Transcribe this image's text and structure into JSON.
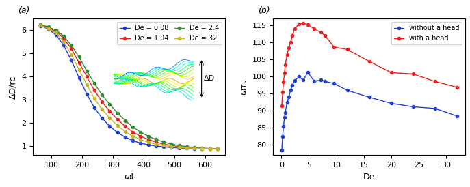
{
  "chart_data": [
    {
      "type": "line",
      "title": "(a)",
      "x_label": "ωt",
      "y_label": "ΔD/rc",
      "annotations": [
        "ΔD"
      ],
      "x": [
        65,
        90,
        115,
        140,
        165,
        190,
        215,
        240,
        265,
        290,
        315,
        340,
        365,
        390,
        415,
        440,
        465,
        490,
        515,
        540,
        565,
        590,
        615,
        640
      ],
      "series": [
        {
          "name": "De = 0.08",
          "color": "#1f3fd6",
          "marker": "o",
          "line_style": "-",
          "values": [
            6.2,
            6.05,
            5.8,
            5.35,
            4.7,
            3.95,
            3.25,
            2.65,
            2.2,
            1.85,
            1.58,
            1.38,
            1.23,
            1.12,
            1.05,
            1.0,
            0.96,
            0.93,
            0.91,
            0.9,
            0.89,
            0.88,
            0.88,
            0.87
          ]
        },
        {
          "name": "De = 1.04",
          "color": "#e8231f",
          "marker": "o",
          "line_style": "-",
          "values": [
            6.22,
            6.12,
            5.95,
            5.65,
            5.2,
            4.6,
            4.0,
            3.4,
            2.9,
            2.5,
            2.15,
            1.85,
            1.6,
            1.42,
            1.28,
            1.17,
            1.08,
            1.02,
            0.97,
            0.93,
            0.91,
            0.89,
            0.88,
            0.87
          ]
        },
        {
          "name": "De = 2.4",
          "color": "#2e8b2e",
          "marker": "o",
          "line_style": "-",
          "values": [
            6.25,
            6.15,
            6.0,
            5.75,
            5.35,
            4.85,
            4.25,
            3.7,
            3.2,
            2.8,
            2.42,
            2.1,
            1.82,
            1.6,
            1.42,
            1.28,
            1.17,
            1.08,
            1.02,
            0.97,
            0.93,
            0.91,
            0.89,
            0.88
          ]
        },
        {
          "name": "De = 32",
          "color": "#c9b52a",
          "marker": "o",
          "line_style": "-",
          "values": [
            6.21,
            6.08,
            5.88,
            5.5,
            4.95,
            4.3,
            3.65,
            3.05,
            2.58,
            2.2,
            1.88,
            1.62,
            1.42,
            1.27,
            1.16,
            1.08,
            1.02,
            0.97,
            0.94,
            0.91,
            0.9,
            0.89,
            0.88,
            0.87
          ]
        }
      ],
      "xlim": [
        40,
        665
      ],
      "xticks": [
        100,
        200,
        300,
        400,
        500,
        600
      ],
      "ylim": [
        0.6,
        6.5
      ],
      "yticks": [
        1,
        2,
        3,
        4,
        5,
        6
      ],
      "legend": "upper right",
      "grid": false
    },
    {
      "type": "line",
      "title": "(b)",
      "x_label": "De",
      "y_label": "ωτₛ",
      "x": [
        0.08,
        0.24,
        0.4,
        0.56,
        0.72,
        1.04,
        1.36,
        1.68,
        2.0,
        2.4,
        3.2,
        4.0,
        4.8,
        6.0,
        7.2,
        8.0,
        9.6,
        12,
        16,
        20,
        24,
        28,
        32
      ],
      "series": [
        {
          "name": "without a head",
          "color": "#1f3fd6",
          "marker": "o",
          "line_style": "-",
          "values": [
            78.5,
            82.5,
            85.5,
            88.0,
            89.5,
            92.5,
            94.0,
            96.0,
            97.5,
            98.8,
            100.0,
            99.0,
            101.3,
            98.7,
            99.0,
            98.6,
            98.0,
            96.0,
            94.0,
            92.2,
            91.2,
            90.7,
            88.5
          ]
        },
        {
          "name": "with a head",
          "color": "#e8231f",
          "marker": "o",
          "line_style": "-",
          "values": [
            91.5,
            95.5,
            98.5,
            101.0,
            103.5,
            106.5,
            108.5,
            110.0,
            112.0,
            114.0,
            115.5,
            115.7,
            115.3,
            114.0,
            113.0,
            112.0,
            108.7,
            108.0,
            104.5,
            101.2,
            100.8,
            98.6,
            96.9
          ]
        }
      ],
      "xlim": [
        -1.5,
        33.5
      ],
      "xticks": [
        0,
        5,
        10,
        15,
        20,
        25,
        30
      ],
      "ylim": [
        77,
        117
      ],
      "yticks": [
        80,
        85,
        90,
        95,
        100,
        105,
        110,
        115
      ],
      "legend": "upper right",
      "grid": false
    }
  ]
}
